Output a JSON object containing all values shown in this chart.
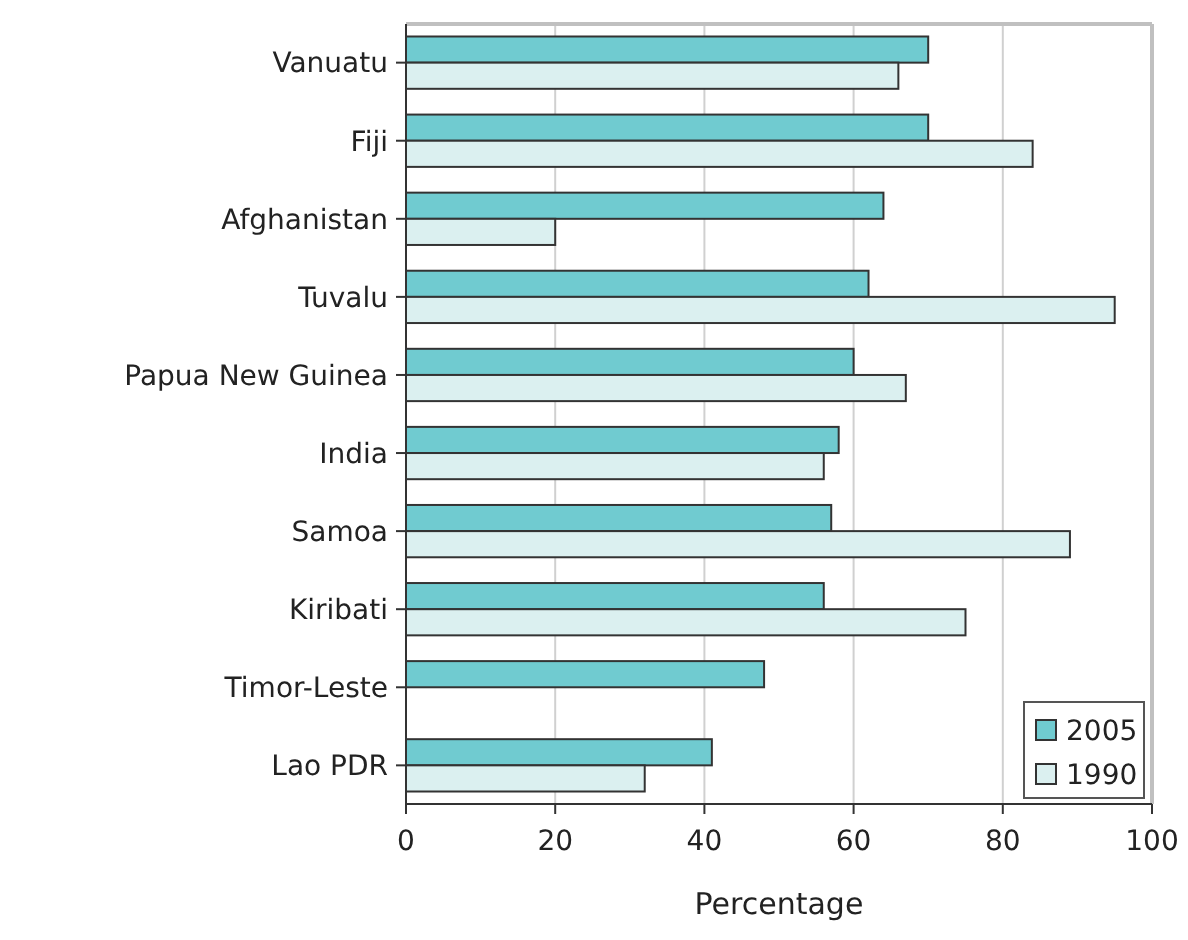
{
  "chart_data": {
    "type": "bar",
    "orientation": "horizontal",
    "xlabel": "Percentage",
    "categories": [
      "Vanuatu",
      "Fiji",
      "Afghanistan",
      "Tuvalu",
      "Papua New Guinea",
      "India",
      "Samoa",
      "Kiribati",
      "Timor-Leste",
      "Lao PDR"
    ],
    "series": [
      {
        "name": "2005",
        "color": "#70cbd0",
        "values": [
          70,
          70,
          64,
          62,
          60,
          58,
          57,
          56,
          48,
          41
        ]
      },
      {
        "name": "1990",
        "color": "#dbf0f0",
        "values": [
          66,
          84,
          20,
          95,
          67,
          56,
          89,
          75,
          null,
          32
        ]
      }
    ],
    "xlim": [
      0,
      100
    ],
    "xticks": [
      0,
      20,
      40,
      60,
      80,
      100
    ],
    "grid": "x",
    "legend": "bottom right"
  }
}
